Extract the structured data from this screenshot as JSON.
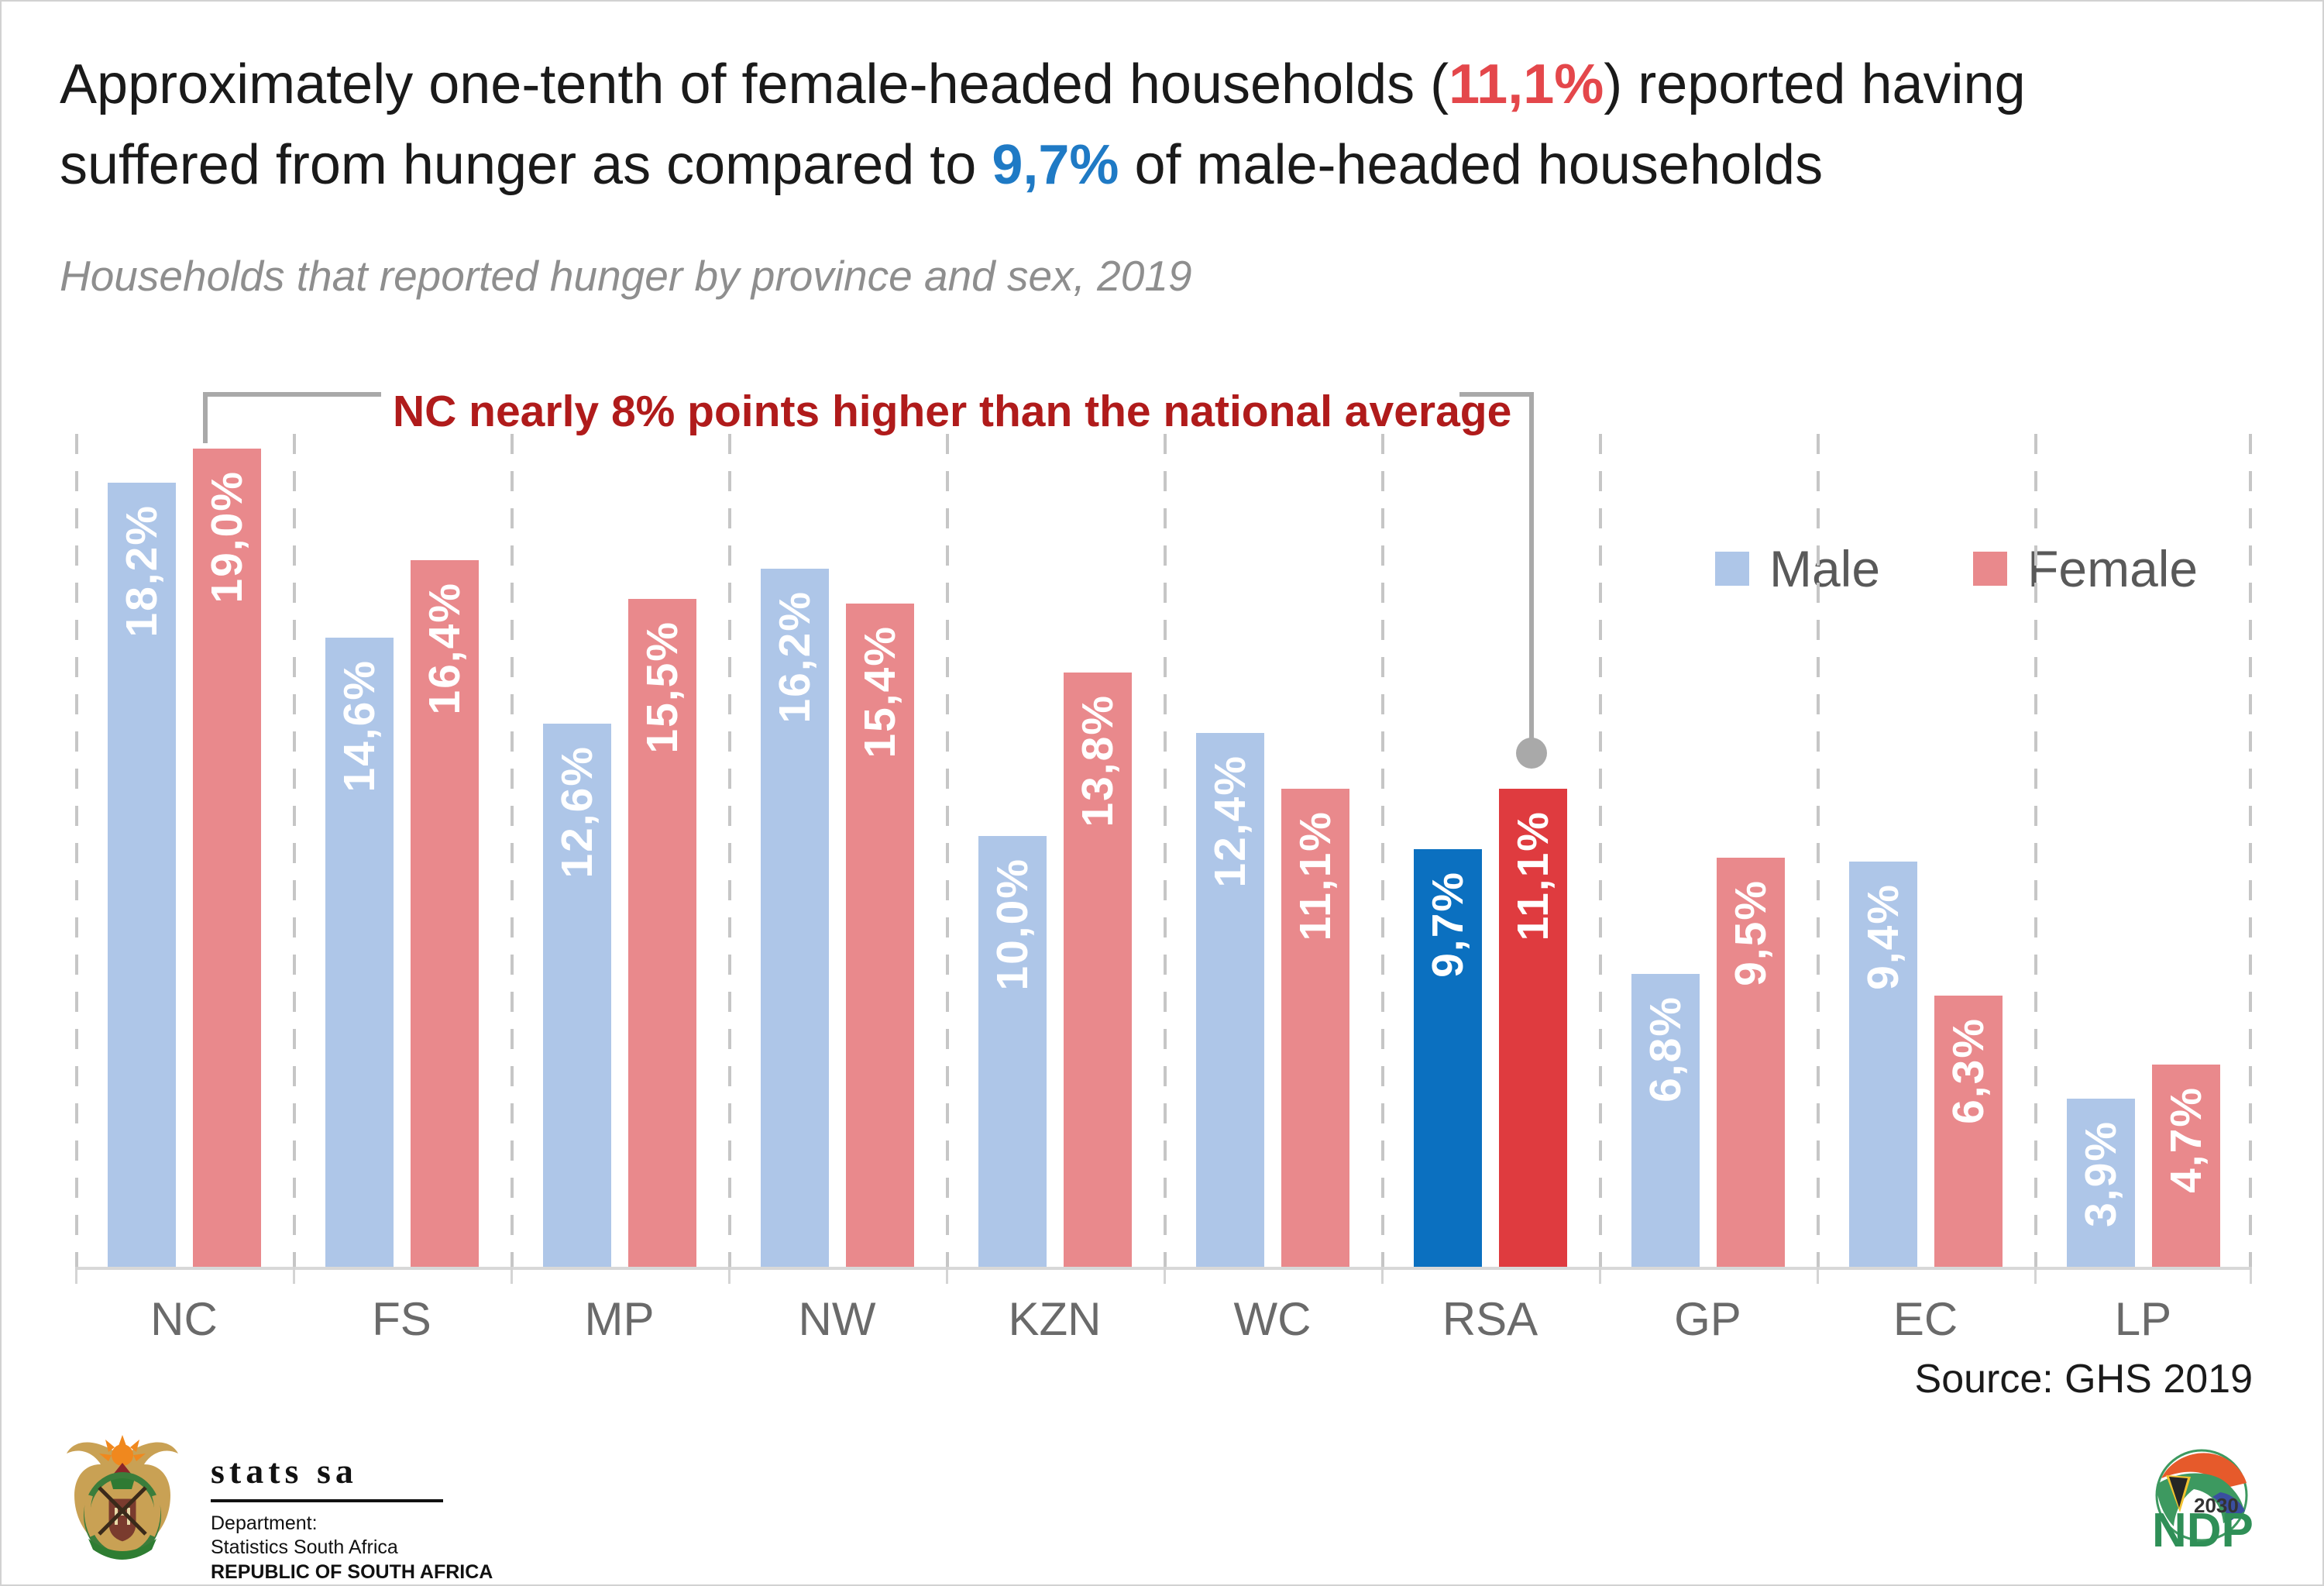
{
  "title": {
    "part1": "Approximately one-tenth of female-headed households (",
    "female_value": "11,1%",
    "part2": ") reported having suffered from hunger as compared to ",
    "male_value": "9,7%",
    "part3": " of male-headed households"
  },
  "subtitle": "Households that reported hunger by province and sex, 2019",
  "annotation": {
    "text": "NC nearly 8% points higher than the national average"
  },
  "legend": {
    "male_label": "Male",
    "female_label": "Female"
  },
  "source": "Source: GHS 2019",
  "chart_data": {
    "type": "bar",
    "title": "Households that reported hunger by province and sex, 2019",
    "categories": [
      "NC",
      "FS",
      "MP",
      "NW",
      "KZN",
      "WC",
      "RSA",
      "GP",
      "EC",
      "LP"
    ],
    "series": [
      {
        "name": "Male",
        "values": [
          18.2,
          14.6,
          12.6,
          16.2,
          10.0,
          12.4,
          9.7,
          6.8,
          9.4,
          3.9
        ],
        "labels": [
          "18,2%",
          "14,6%",
          "12,6%",
          "16,2%",
          "10,0%",
          "12,4%",
          "9,7%",
          "6,8%",
          "9,4%",
          "3,9%"
        ]
      },
      {
        "name": "Female",
        "values": [
          19.0,
          16.4,
          15.5,
          15.4,
          13.8,
          11.1,
          11.1,
          9.5,
          6.3,
          4.7
        ],
        "labels": [
          "19,0%",
          "16,4%",
          "15,5%",
          "15,4%",
          "13,8%",
          "11,1%",
          "11,1%",
          "9,5%",
          "6,3%",
          "4,7%"
        ]
      }
    ],
    "highlight_category": "RSA",
    "unit": "%",
    "ylim": [
      0,
      20
    ],
    "grid": "vertical-dashed",
    "legend_position": "upper-right"
  },
  "colors": {
    "male": "#aec6e8",
    "female": "#e9898c",
    "male_highlight": "#0b70c0",
    "female_highlight": "#df3b3f",
    "title_red": "#e4474b",
    "title_blue": "#1f7ac5",
    "annotation_red": "#b01b1b"
  },
  "footer": {
    "statssa_name": "stats sa",
    "dept_line1": "Department:",
    "dept_line2": "Statistics South Africa",
    "dept_line3": "REPUBLIC OF SOUTH AFRICA",
    "ndp_year": "2030",
    "ndp_name": "NDP"
  }
}
